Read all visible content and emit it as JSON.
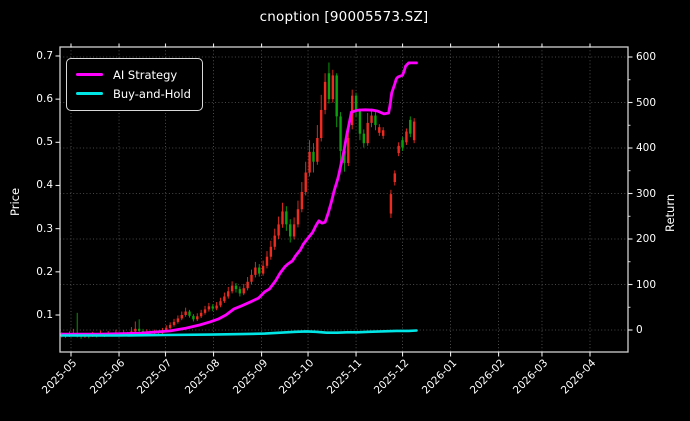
{
  "window": {
    "title": "cnoption [90005573.SZ]"
  },
  "colors": {
    "background": "#000000",
    "text": "#ffffff",
    "grid": "#5f5f5f",
    "spine": "#d0d0d0",
    "tick": "#e8e8e8",
    "up_candle": "#ef2b20",
    "down_candle": "#0ba30b",
    "ai_strategy": "#ff00ff",
    "buy_and_hold": "#00e5e5"
  },
  "legend": {
    "items": [
      {
        "label": "AI Strategy",
        "color": "#ff00ff"
      },
      {
        "label": "Buy-and-Hold",
        "color": "#00e5e5"
      }
    ]
  },
  "chart_data": {
    "type": "candlestick+line",
    "title": "cnoption [90005573.SZ]",
    "grid": "dotted, follows return axis",
    "legend_position": "upper-left",
    "price_axis": {
      "label": "Price",
      "ticks": [
        0.1,
        0.2,
        0.3,
        0.4,
        0.5,
        0.6,
        0.7
      ],
      "range": [
        0.014,
        0.72
      ]
    },
    "return_axis": {
      "label": "Return",
      "ticks": [
        0,
        100,
        200,
        300,
        400,
        500,
        600
      ],
      "minor_step": 50,
      "range": [
        -48,
        622
      ]
    },
    "x_axis": {
      "tick_labels": [
        "2025-05",
        "2025-06",
        "2025-07",
        "2025-08",
        "2025-09",
        "2025-10",
        "2025-11",
        "2025-12",
        "2026-01",
        "2026-02",
        "2026-03",
        "2026-04"
      ],
      "tick_days": [
        0,
        31,
        61,
        92,
        123,
        153,
        184,
        214,
        245,
        276,
        304,
        335
      ],
      "label_rotation_deg": 45
    },
    "candles_format": [
      "day_from_2025-05-01",
      "open",
      "high",
      "low",
      "close"
    ],
    "candle_convention": "red = close >= open (up), green = down",
    "candles": [
      [
        -6,
        0.052,
        0.06,
        0.048,
        0.055
      ],
      [
        -3.5,
        0.055,
        0.058,
        0.047,
        0.051
      ],
      [
        -1,
        0.051,
        0.062,
        0.049,
        0.054
      ],
      [
        1.5,
        0.054,
        0.068,
        0.052,
        0.058
      ],
      [
        4,
        0.058,
        0.105,
        0.048,
        0.052
      ],
      [
        6.5,
        0.052,
        0.056,
        0.045,
        0.05
      ],
      [
        9,
        0.05,
        0.058,
        0.047,
        0.053
      ],
      [
        11.5,
        0.053,
        0.055,
        0.046,
        0.051
      ],
      [
        14,
        0.051,
        0.061,
        0.049,
        0.055
      ],
      [
        16.5,
        0.055,
        0.057,
        0.048,
        0.052
      ],
      [
        19,
        0.052,
        0.064,
        0.05,
        0.056
      ],
      [
        21.5,
        0.056,
        0.058,
        0.049,
        0.053
      ],
      [
        24,
        0.053,
        0.063,
        0.051,
        0.057
      ],
      [
        26.5,
        0.057,
        0.059,
        0.05,
        0.054
      ],
      [
        29,
        0.054,
        0.066,
        0.052,
        0.058
      ],
      [
        31.5,
        0.058,
        0.06,
        0.051,
        0.055
      ],
      [
        34,
        0.055,
        0.065,
        0.053,
        0.059
      ],
      [
        36.5,
        0.059,
        0.061,
        0.052,
        0.056
      ],
      [
        39,
        0.056,
        0.072,
        0.054,
        0.062
      ],
      [
        41.5,
        0.062,
        0.085,
        0.058,
        0.068
      ],
      [
        44,
        0.068,
        0.09,
        0.059,
        0.063
      ],
      [
        46.5,
        0.063,
        0.068,
        0.055,
        0.059
      ],
      [
        49,
        0.059,
        0.067,
        0.056,
        0.062
      ],
      [
        51.5,
        0.062,
        0.064,
        0.054,
        0.058
      ],
      [
        54,
        0.058,
        0.066,
        0.055,
        0.061
      ],
      [
        56.5,
        0.061,
        0.063,
        0.053,
        0.058
      ],
      [
        59,
        0.058,
        0.07,
        0.056,
        0.064
      ],
      [
        61.5,
        0.064,
        0.076,
        0.061,
        0.07
      ],
      [
        64,
        0.07,
        0.083,
        0.067,
        0.077
      ],
      [
        66.5,
        0.077,
        0.091,
        0.073,
        0.084
      ],
      [
        69,
        0.084,
        0.099,
        0.08,
        0.092
      ],
      [
        71.5,
        0.092,
        0.108,
        0.088,
        0.1
      ],
      [
        74,
        0.1,
        0.117,
        0.096,
        0.108
      ],
      [
        76.5,
        0.108,
        0.112,
        0.094,
        0.098
      ],
      [
        79,
        0.098,
        0.102,
        0.085,
        0.09
      ],
      [
        81.5,
        0.09,
        0.104,
        0.086,
        0.097
      ],
      [
        84,
        0.097,
        0.112,
        0.093,
        0.105
      ],
      [
        86.5,
        0.105,
        0.121,
        0.101,
        0.113
      ],
      [
        89,
        0.113,
        0.128,
        0.108,
        0.12
      ],
      [
        91.5,
        0.12,
        0.125,
        0.109,
        0.115
      ],
      [
        94,
        0.115,
        0.13,
        0.111,
        0.122
      ],
      [
        96.5,
        0.122,
        0.14,
        0.118,
        0.132
      ],
      [
        99,
        0.132,
        0.152,
        0.128,
        0.143
      ],
      [
        101.5,
        0.143,
        0.165,
        0.138,
        0.155
      ],
      [
        104,
        0.155,
        0.178,
        0.15,
        0.168
      ],
      [
        106.5,
        0.168,
        0.174,
        0.152,
        0.16
      ],
      [
        109,
        0.16,
        0.166,
        0.143,
        0.15
      ],
      [
        111.5,
        0.15,
        0.172,
        0.146,
        0.162
      ],
      [
        114,
        0.162,
        0.188,
        0.157,
        0.177
      ],
      [
        116.5,
        0.177,
        0.205,
        0.171,
        0.193
      ],
      [
        119,
        0.193,
        0.223,
        0.187,
        0.21
      ],
      [
        121.5,
        0.21,
        0.218,
        0.189,
        0.196
      ],
      [
        124,
        0.196,
        0.226,
        0.191,
        0.214
      ],
      [
        126.5,
        0.214,
        0.248,
        0.208,
        0.235
      ],
      [
        129,
        0.235,
        0.272,
        0.228,
        0.258
      ],
      [
        131.5,
        0.258,
        0.3,
        0.251,
        0.284
      ],
      [
        134,
        0.284,
        0.328,
        0.276,
        0.31
      ],
      [
        136.5,
        0.31,
        0.36,
        0.302,
        0.34
      ],
      [
        139,
        0.34,
        0.352,
        0.295,
        0.31
      ],
      [
        141.5,
        0.31,
        0.322,
        0.268,
        0.282
      ],
      [
        144,
        0.282,
        0.326,
        0.275,
        0.31
      ],
      [
        146.5,
        0.31,
        0.365,
        0.303,
        0.345
      ],
      [
        149,
        0.345,
        0.408,
        0.338,
        0.385
      ],
      [
        151.5,
        0.385,
        0.455,
        0.377,
        0.43
      ],
      [
        154,
        0.43,
        0.505,
        0.421,
        0.478
      ],
      [
        156.5,
        0.478,
        0.498,
        0.43,
        0.455
      ],
      [
        159,
        0.455,
        0.54,
        0.448,
        0.51
      ],
      [
        161.5,
        0.51,
        0.61,
        0.502,
        0.575
      ],
      [
        164,
        0.575,
        0.66,
        0.565,
        0.64
      ],
      [
        166.5,
        0.66,
        0.685,
        0.59,
        0.6
      ],
      [
        169,
        0.6,
        0.668,
        0.592,
        0.655
      ],
      [
        171.5,
        0.655,
        0.66,
        0.535,
        0.56
      ],
      [
        174,
        0.56,
        0.57,
        0.455,
        0.48
      ],
      [
        176.5,
        0.48,
        0.495,
        0.432,
        0.452
      ],
      [
        179,
        0.452,
        0.53,
        0.445,
        0.51
      ],
      [
        181.5,
        0.54,
        0.622,
        0.53,
        0.608
      ],
      [
        184,
        0.608,
        0.615,
        0.558,
        0.572
      ],
      [
        186.5,
        0.572,
        0.578,
        0.505,
        0.52
      ],
      [
        189,
        0.52,
        0.53,
        0.488,
        0.498
      ],
      [
        191.5,
        0.498,
        0.568,
        0.492,
        0.545
      ],
      [
        194,
        0.545,
        0.578,
        0.535,
        0.562
      ],
      [
        196.5,
        0.562,
        0.57,
        0.528,
        0.54
      ],
      [
        199,
        0.522,
        0.542,
        0.515,
        0.535
      ],
      [
        201.5,
        0.515,
        0.535,
        0.508,
        0.528
      ],
      [
        206.5,
        0.335,
        0.39,
        0.325,
        0.38
      ],
      [
        209,
        0.408,
        0.435,
        0.4,
        0.428
      ],
      [
        211.5,
        0.475,
        0.5,
        0.468,
        0.492
      ],
      [
        214,
        0.505,
        0.512,
        0.48,
        0.488
      ],
      [
        216.5,
        0.5,
        0.532,
        0.494,
        0.525
      ],
      [
        219,
        0.552,
        0.56,
        0.512,
        0.52
      ],
      [
        221.5,
        0.505,
        0.556,
        0.498,
        0.548
      ]
    ],
    "series": [
      {
        "name": "AI Strategy",
        "axis": "return",
        "color": "#ff00ff",
        "points": [
          [
            -6,
            -9
          ],
          [
            19,
            -9
          ],
          [
            45,
            -7
          ],
          [
            64,
            -2
          ],
          [
            74,
            4
          ],
          [
            83,
            11
          ],
          [
            90,
            18
          ],
          [
            95,
            24
          ],
          [
            100,
            33
          ],
          [
            105,
            46
          ],
          [
            110,
            53
          ],
          [
            116,
            62
          ],
          [
            121,
            70
          ],
          [
            125,
            84
          ],
          [
            128,
            90
          ],
          [
            132,
            108
          ],
          [
            135,
            125
          ],
          [
            138,
            139
          ],
          [
            140,
            145
          ],
          [
            143,
            152
          ],
          [
            145,
            163
          ],
          [
            148,
            176
          ],
          [
            150,
            189
          ],
          [
            153,
            202
          ],
          [
            156,
            215
          ],
          [
            158,
            229
          ],
          [
            160,
            240
          ],
          [
            162,
            235
          ],
          [
            164,
            237
          ],
          [
            166,
            257
          ],
          [
            168,
            281
          ],
          [
            170,
            308
          ],
          [
            172,
            330
          ],
          [
            173,
            343
          ],
          [
            174,
            360
          ],
          [
            176,
            391
          ],
          [
            178,
            429
          ],
          [
            180,
            462
          ],
          [
            181,
            479
          ],
          [
            185,
            483
          ],
          [
            190,
            484
          ],
          [
            195,
            483
          ],
          [
            198,
            481
          ],
          [
            202,
            475
          ],
          [
            205,
            477
          ],
          [
            206,
            495
          ],
          [
            207,
            521
          ],
          [
            209,
            541
          ],
          [
            210,
            552
          ],
          [
            211,
            556
          ],
          [
            214,
            560
          ],
          [
            215,
            569
          ],
          [
            216,
            580
          ],
          [
            218,
            587
          ],
          [
            223,
            587
          ]
        ]
      },
      {
        "name": "Buy-and-Hold",
        "axis": "return",
        "color": "#00e5e5",
        "points": [
          [
            -6,
            -12
          ],
          [
            30,
            -12
          ],
          [
            60,
            -11
          ],
          [
            90,
            -10
          ],
          [
            110,
            -9
          ],
          [
            125,
            -8
          ],
          [
            135,
            -6
          ],
          [
            145,
            -4
          ],
          [
            152,
            -3
          ],
          [
            158,
            -4
          ],
          [
            165,
            -6
          ],
          [
            172,
            -6
          ],
          [
            178,
            -5
          ],
          [
            185,
            -5
          ],
          [
            192,
            -4
          ],
          [
            200,
            -3
          ],
          [
            210,
            -2
          ],
          [
            218,
            -2
          ],
          [
            223,
            -1
          ]
        ]
      }
    ]
  }
}
